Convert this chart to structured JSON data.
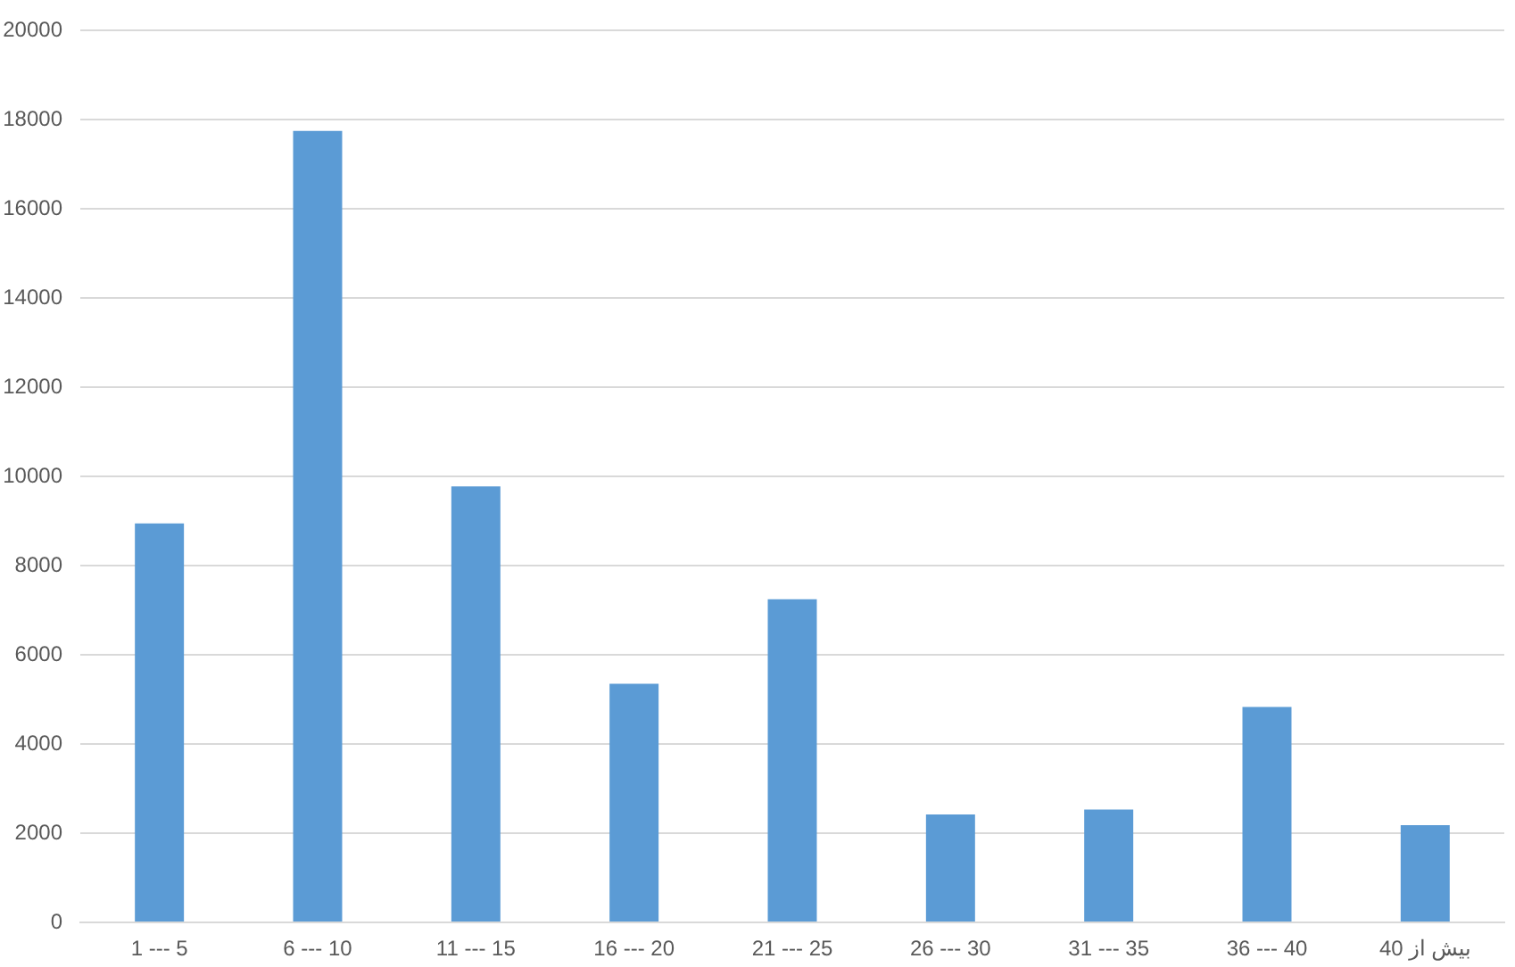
{
  "chart_data": {
    "type": "bar",
    "categories": [
      "1 --- 5",
      "6 --- 10",
      "11 --- 15",
      "16 --- 20",
      "21 --- 25",
      "26 --- 30",
      "31 --- 35",
      "36 --- 40",
      "بیش از 40"
    ],
    "values": [
      8950,
      17750,
      9780,
      5350,
      7250,
      2420,
      2530,
      4830,
      2180
    ],
    "color": "#5b9bd5",
    "ylim": [
      0,
      20000
    ],
    "yticks": [
      0,
      2000,
      4000,
      6000,
      8000,
      10000,
      12000,
      14000,
      16000,
      18000,
      20000
    ],
    "grid": "y"
  }
}
